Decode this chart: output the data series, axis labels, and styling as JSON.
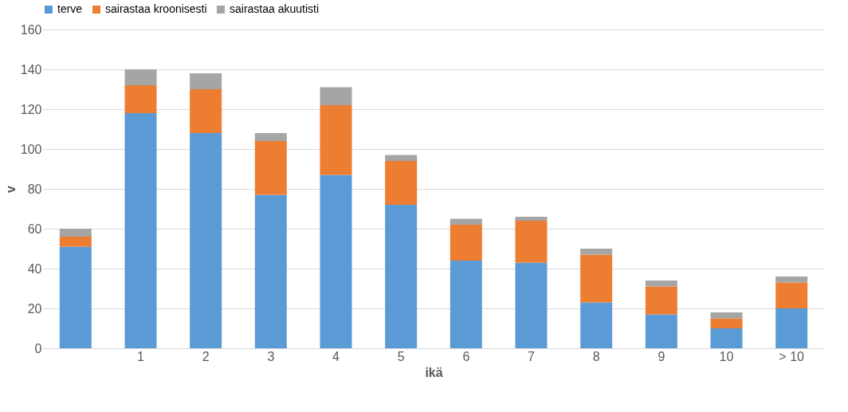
{
  "chart_data": {
    "type": "bar",
    "stacked": true,
    "xlabel": "ikä",
    "ylabel": "v",
    "categories": [
      null,
      "1",
      "2",
      "3",
      "4",
      "5",
      "6",
      "7",
      "8",
      "9",
      "10",
      "> 10"
    ],
    "series": [
      {
        "name": "terve",
        "color": "#5b9bd5",
        "values": [
          51,
          118,
          108,
          77,
          87,
          72,
          44,
          43,
          23,
          17,
          10,
          20
        ]
      },
      {
        "name": "sairastaa kroonisesti",
        "color": "#ed7d31",
        "values": [
          5,
          14,
          22,
          27,
          35,
          22,
          18,
          21,
          24,
          14,
          5,
          13
        ]
      },
      {
        "name": "sairastaa akuutisti",
        "color": "#a5a5a5",
        "values": [
          4,
          8,
          8,
          4,
          9,
          3,
          3,
          2,
          3,
          3,
          3,
          3
        ]
      }
    ],
    "ylim": [
      0,
      160
    ],
    "yticks": [
      0,
      20,
      40,
      60,
      80,
      100,
      120,
      140,
      160
    ],
    "grid": "y",
    "legend": "top"
  }
}
